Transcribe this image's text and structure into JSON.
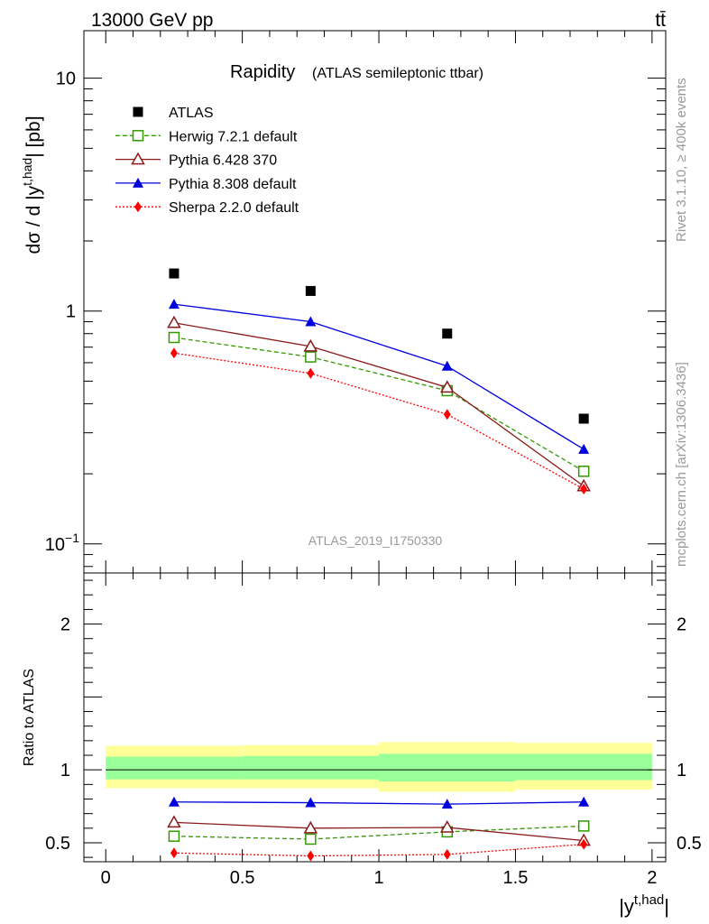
{
  "header": {
    "left": "13000 GeV pp",
    "right": "tt̄"
  },
  "chart_data": {
    "type": "line",
    "title": "Rapidity",
    "subtitle": "(ATLAS semileptonic ttbar)",
    "watermark": "ATLAS_2019_I1750330",
    "side_label_top": "Rivet 3.1.10, ≥ 400k events",
    "side_label_bottom": "mcplots.cern.ch [arXiv:1306.3436]",
    "x": [
      0.25,
      0.75,
      1.25,
      1.75
    ],
    "bin_edges": [
      0,
      0.5,
      1,
      1.5,
      2
    ],
    "xlim": [
      -0.08,
      2.05
    ],
    "xlabel": "|y",
    "xlabel_sup": "t,had",
    "xlabel_end": "|",
    "xticks": [
      {
        "v": 0,
        "label": "0"
      },
      {
        "v": 0.5,
        "label": "0.5"
      },
      {
        "v": 1,
        "label": "1"
      },
      {
        "v": 1.5,
        "label": "1.5"
      },
      {
        "v": 2,
        "label": "2"
      }
    ],
    "main": {
      "yscale": "log",
      "ylim": [
        0.075,
        16
      ],
      "ylabel": "dσ / d |y",
      "ylabel_sup": "t,had",
      "ylabel_end": "| [pb]",
      "yticks": [
        {
          "v": 0.1,
          "base": "10",
          "exp": "−1"
        },
        {
          "v": 1,
          "base": "1",
          "exp": ""
        },
        {
          "v": 10,
          "base": "10",
          "exp": ""
        }
      ]
    },
    "ratio": {
      "ylabel": "Ratio to ATLAS",
      "ylim": [
        0.37,
        2.35
      ],
      "yticks": [
        {
          "v": 0.5,
          "label": "0.5"
        },
        {
          "v": 1,
          "label": "1"
        },
        {
          "v": 2,
          "label": "2"
        }
      ],
      "band_outer": [
        {
          "x0": 0,
          "x1": 0.5,
          "lo": 0.875,
          "hi": 1.165
        },
        {
          "x0": 0.5,
          "x1": 1,
          "lo": 0.875,
          "hi": 1.17
        },
        {
          "x0": 1,
          "x1": 1.5,
          "lo": 0.85,
          "hi": 1.19
        },
        {
          "x0": 1.5,
          "x1": 2,
          "lo": 0.865,
          "hi": 1.185
        }
      ],
      "band_inner": [
        {
          "x0": 0,
          "x1": 0.5,
          "lo": 0.935,
          "hi": 1.09
        },
        {
          "x0": 0.5,
          "x1": 1,
          "lo": 0.935,
          "hi": 1.095
        },
        {
          "x0": 1,
          "x1": 1.5,
          "lo": 0.92,
          "hi": 1.11
        },
        {
          "x0": 1.5,
          "x1": 2,
          "lo": 0.93,
          "hi": 1.11
        }
      ],
      "band_outer_color": "#ffff99",
      "band_inner_color": "#99ff99"
    },
    "series": [
      {
        "name": "ATLAS",
        "color": "#000000",
        "marker": "square-filled",
        "line": "none",
        "values": [
          1.45,
          1.22,
          0.8,
          0.345
        ],
        "ratio": [
          1,
          1,
          1,
          1
        ],
        "ratio_err": [
          0,
          0,
          0,
          0
        ]
      },
      {
        "name": "Herwig 7.2.1 default",
        "color": "#339900",
        "marker": "square-open",
        "line": "dashed",
        "values": [
          0.77,
          0.635,
          0.455,
          0.205
        ],
        "ratio": [
          0.545,
          0.525,
          0.575,
          0.615
        ],
        "ratio_err": [
          0.005,
          0.006,
          0.008,
          0.02
        ]
      },
      {
        "name": "Pythia 6.428 370",
        "color": "#8b1a1a",
        "marker": "triangle-open",
        "line": "solid",
        "values": [
          0.89,
          0.705,
          0.47,
          0.177
        ],
        "ratio": [
          0.64,
          0.6,
          0.605,
          0.515
        ],
        "ratio_err": [
          0.005,
          0.006,
          0.008,
          0.03
        ]
      },
      {
        "name": "Pythia 8.308 default",
        "color": "#0000dd",
        "marker": "triangle-filled",
        "line": "solid",
        "values": [
          1.07,
          0.9,
          0.58,
          0.255
        ],
        "ratio": [
          0.78,
          0.775,
          0.765,
          0.78
        ],
        "ratio_err": [
          0.006,
          0.008,
          0.018,
          0.028
        ]
      },
      {
        "name": "Sherpa 2.2.0 default",
        "color": "#ff0000",
        "marker": "diamond-filled",
        "line": "dotted",
        "values": [
          0.66,
          0.54,
          0.36,
          0.172
        ],
        "ratio": [
          0.43,
          0.41,
          0.42,
          0.49
        ],
        "ratio_err": [
          0.005,
          0.008,
          0.015,
          0.03
        ]
      }
    ]
  }
}
